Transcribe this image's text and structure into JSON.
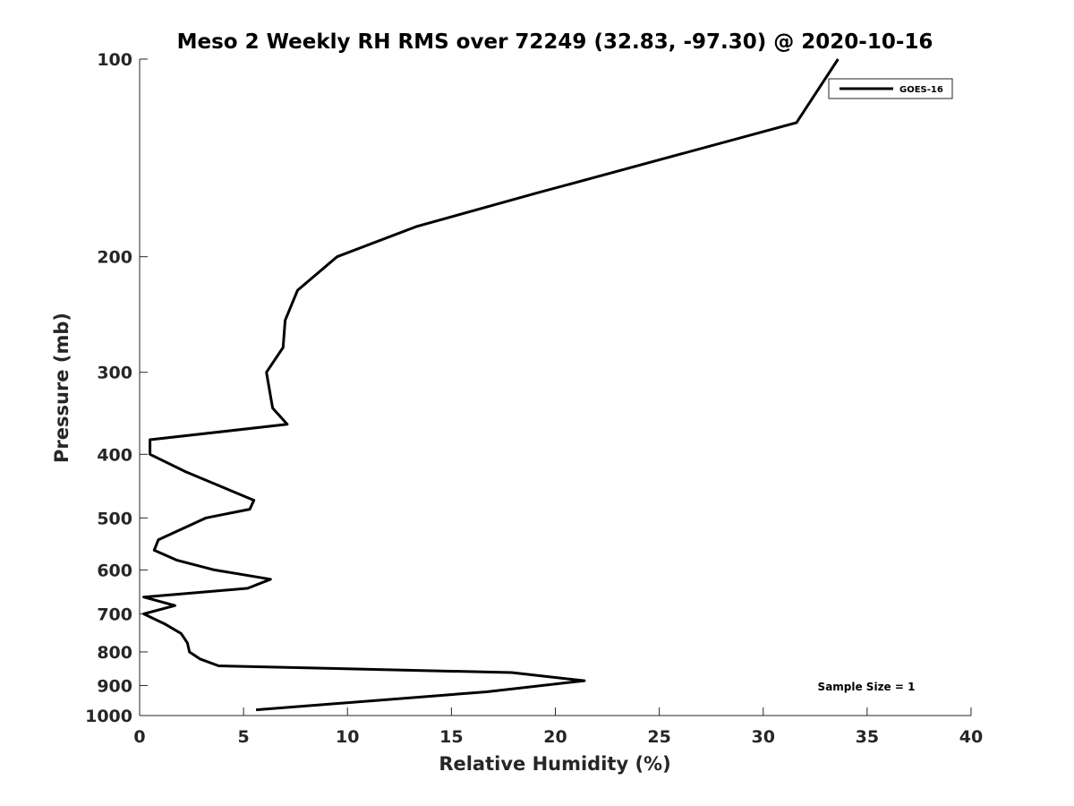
{
  "chart_data": {
    "type": "line",
    "title": "Meso 2 Weekly RH RMS over 72249 (32.83, -97.30) @ 2020-10-16",
    "xlabel": "Relative Humidity (%)",
    "ylabel": "Pressure (mb)",
    "xlim": [
      0,
      40
    ],
    "ylim": [
      100,
      1000
    ],
    "y_scale": "log",
    "y_reversed": true,
    "x_ticks": [
      0,
      5,
      10,
      15,
      20,
      25,
      30,
      35,
      40
    ],
    "y_ticks": [
      100,
      200,
      300,
      400,
      500,
      600,
      700,
      800,
      900,
      1000
    ],
    "grid": false,
    "legend_placement": "top-right",
    "annotation": "Sample Size = 1",
    "series": [
      {
        "name": "GOES-16",
        "color": "#000000",
        "points": [
          {
            "x": 33.6,
            "y": 100
          },
          {
            "x": 31.6,
            "y": 125
          },
          {
            "x": 19.1,
            "y": 160
          },
          {
            "x": 13.3,
            "y": 180
          },
          {
            "x": 9.5,
            "y": 200
          },
          {
            "x": 7.6,
            "y": 225
          },
          {
            "x": 7.0,
            "y": 250
          },
          {
            "x": 6.9,
            "y": 275
          },
          {
            "x": 6.1,
            "y": 300
          },
          {
            "x": 6.4,
            "y": 340
          },
          {
            "x": 7.1,
            "y": 360
          },
          {
            "x": 0.5,
            "y": 380
          },
          {
            "x": 0.5,
            "y": 400
          },
          {
            "x": 2.2,
            "y": 425
          },
          {
            "x": 5.5,
            "y": 470
          },
          {
            "x": 5.3,
            "y": 485
          },
          {
            "x": 3.2,
            "y": 500
          },
          {
            "x": 0.9,
            "y": 540
          },
          {
            "x": 0.7,
            "y": 560
          },
          {
            "x": 1.8,
            "y": 580
          },
          {
            "x": 3.6,
            "y": 600
          },
          {
            "x": 6.3,
            "y": 620
          },
          {
            "x": 5.2,
            "y": 640
          },
          {
            "x": 0.2,
            "y": 660
          },
          {
            "x": 1.7,
            "y": 680
          },
          {
            "x": 0.2,
            "y": 700
          },
          {
            "x": 1.2,
            "y": 725
          },
          {
            "x": 2.0,
            "y": 750
          },
          {
            "x": 2.3,
            "y": 775
          },
          {
            "x": 2.4,
            "y": 800
          },
          {
            "x": 2.9,
            "y": 820
          },
          {
            "x": 3.8,
            "y": 840
          },
          {
            "x": 17.9,
            "y": 860
          },
          {
            "x": 21.4,
            "y": 885
          },
          {
            "x": 16.7,
            "y": 920
          },
          {
            "x": 5.6,
            "y": 980
          }
        ]
      }
    ]
  }
}
